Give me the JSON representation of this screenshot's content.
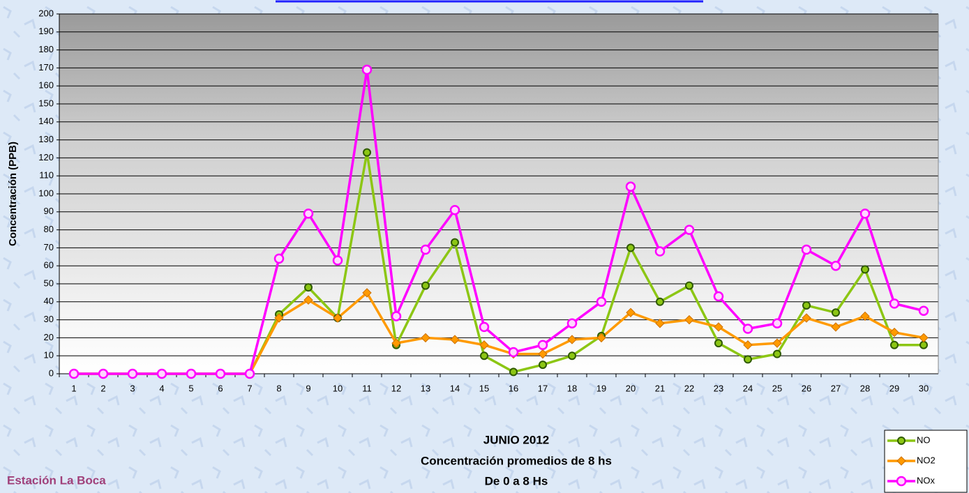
{
  "chart_data": {
    "type": "line",
    "title_lines": [
      "JUNIO 2012",
      "Concentración promedios de 8 hs",
      "De 0 a 8 Hs"
    ],
    "y_label": "Concentración  (PPB)",
    "annotations": [
      "Estación La Boca"
    ],
    "categories": [
      "1",
      "2",
      "3",
      "4",
      "5",
      "6",
      "7",
      "8",
      "9",
      "10",
      "11",
      "12",
      "13",
      "14",
      "15",
      "16",
      "17",
      "18",
      "19",
      "20",
      "21",
      "22",
      "23",
      "24",
      "25",
      "26",
      "27",
      "28",
      "29",
      "30"
    ],
    "series": [
      {
        "name": "NO",
        "color": "#8cc614",
        "marker": "circle",
        "values": [
          0,
          0,
          0,
          0,
          0,
          0,
          0,
          33,
          48,
          31,
          123,
          16,
          49,
          73,
          10,
          1,
          5,
          10,
          21,
          70,
          40,
          49,
          17,
          8,
          11,
          38,
          34,
          58,
          16,
          16
        ]
      },
      {
        "name": "NO2",
        "color": "#ff9a00",
        "marker": "diamond",
        "values": [
          0,
          0,
          0,
          0,
          0,
          0,
          0,
          31,
          41,
          31,
          45,
          17,
          20,
          19,
          16,
          11,
          11,
          19,
          20,
          34,
          28,
          30,
          26,
          16,
          17,
          31,
          26,
          32,
          23,
          20
        ]
      },
      {
        "name": "NOx",
        "color": "#ff00ff",
        "marker": "circle-open",
        "values": [
          0,
          0,
          0,
          0,
          0,
          0,
          0,
          64,
          89,
          63,
          169,
          32,
          69,
          91,
          26,
          12,
          16,
          28,
          40,
          104,
          68,
          80,
          43,
          25,
          28,
          69,
          60,
          89,
          39,
          35
        ]
      }
    ],
    "ylim": [
      0,
      200
    ],
    "yticks": [
      0,
      10,
      20,
      30,
      40,
      50,
      60,
      70,
      80,
      90,
      100,
      110,
      120,
      130,
      140,
      150,
      160,
      170,
      180,
      190,
      200
    ],
    "grid": true,
    "legend": "bottom-right"
  }
}
